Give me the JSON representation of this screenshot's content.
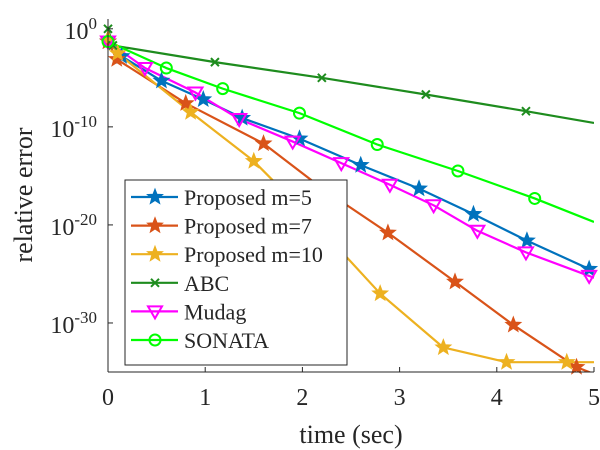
{
  "chart_data": {
    "type": "line",
    "title": "",
    "xlabel": "time (sec)",
    "ylabel": "relative error",
    "xlim": [
      0,
      5
    ],
    "ylim_log10": [
      -35,
      1
    ],
    "yscale": "log",
    "xticks": [
      {
        "value": 0,
        "label": "0"
      },
      {
        "value": 1,
        "label": "1"
      },
      {
        "value": 2,
        "label": "2"
      },
      {
        "value": 3,
        "label": "3"
      },
      {
        "value": 4,
        "label": "4"
      },
      {
        "value": 5,
        "label": "5"
      }
    ],
    "yticks": [
      {
        "exp": 0,
        "base": "10",
        "sup": "0"
      },
      {
        "exp": -10,
        "base": "10",
        "sup": "-10"
      },
      {
        "exp": -20,
        "base": "10",
        "sup": "-20"
      },
      {
        "exp": -30,
        "base": "10",
        "sup": "-30"
      }
    ],
    "legend_position": "bottom-left",
    "series": [
      {
        "name": "Proposed m=5",
        "color": "#0072BD",
        "marker": "star",
        "x": [
          0,
          0.14,
          0.55,
          0.98,
          1.38,
          1.97,
          2.6,
          3.2,
          3.76,
          4.31,
          4.95,
          5.0
        ],
        "y_log10": [
          -1.3,
          -2.8,
          -5.3,
          -7.2,
          -9.1,
          -11.2,
          -13.9,
          -16.3,
          -18.9,
          -21.6,
          -24.5,
          -24.8
        ]
      },
      {
        "name": "Proposed m=7",
        "color": "#D95319",
        "marker": "star",
        "x": [
          0,
          0.09,
          0.8,
          1.6,
          2.22,
          2.88,
          3.57,
          4.17,
          4.82,
          5.0
        ],
        "y_log10": [
          -1.3,
          -3.1,
          -7.6,
          -11.7,
          -16.4,
          -20.8,
          -25.8,
          -30.2,
          -34.5,
          -35.2
        ]
      },
      {
        "name": "Proposed m=10",
        "color": "#EDB120",
        "marker": "star",
        "x": [
          0,
          0.1,
          0.85,
          1.5,
          2.15,
          2.8,
          3.45,
          4.1,
          4.72,
          5.0
        ],
        "y_log10": [
          -1.0,
          -2.5,
          -8.5,
          -13.5,
          -20.0,
          -27.0,
          -32.5,
          -34.0,
          -34.0,
          -34.0
        ]
      },
      {
        "name": "ABC",
        "color": "#1E8C1E",
        "marker": "x",
        "x": [
          0,
          0.05,
          1.1,
          2.2,
          3.27,
          4.3,
          5.0
        ],
        "y_log10": [
          0,
          -1.7,
          -3.4,
          -5.0,
          -6.7,
          -8.4,
          -9.6
        ]
      },
      {
        "name": "Mudag",
        "color": "#FF00FF",
        "marker": "triangle-down",
        "x": [
          0,
          0.38,
          0.9,
          1.35,
          1.9,
          2.4,
          2.9,
          3.35,
          3.8,
          4.3,
          4.95,
          5.0
        ],
        "y_log10": [
          -1.3,
          -4.0,
          -6.5,
          -9.2,
          -11.5,
          -13.7,
          -15.9,
          -18.0,
          -20.6,
          -22.8,
          -25.2,
          -25.4
        ]
      },
      {
        "name": "SONATA",
        "color": "#00FF00",
        "marker": "circle",
        "x": [
          0,
          0.6,
          1.18,
          1.97,
          2.77,
          3.6,
          4.39,
          5.0
        ],
        "y_log10": [
          -1.3,
          -4.0,
          -6.1,
          -8.6,
          -11.8,
          -14.5,
          -17.3,
          -19.7
        ]
      }
    ]
  }
}
